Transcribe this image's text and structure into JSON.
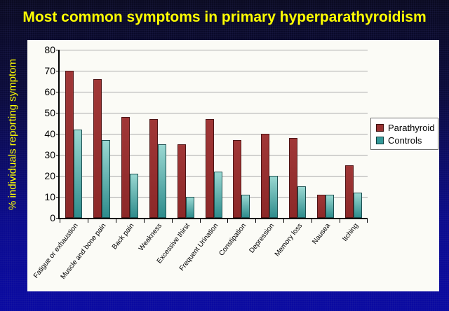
{
  "title": "Most common symptoms in primary hyperparathyroidism",
  "chart_data": {
    "type": "bar",
    "title": "Most common symptoms in primary hyperparathyroidism",
    "xlabel": "",
    "ylabel": "% individuals reporting symptom",
    "ylim": [
      0,
      80
    ],
    "ytick_step": 10,
    "grid": true,
    "legend_position": "right",
    "categories": [
      "Fatigue or exhaustion",
      "Muscle and bone pain",
      "Back pain",
      "Weakness",
      "Excessive thirst",
      "Frequent Urination",
      "Constipation",
      "Depression",
      "Memory loss",
      "Nausea",
      "Itching"
    ],
    "series": [
      {
        "name": "Parathyroid",
        "color": "#993333",
        "values": [
          70,
          66,
          48,
          47,
          35,
          47,
          37,
          40,
          38,
          11,
          25
        ]
      },
      {
        "name": "Controls",
        "color": "#339999",
        "values": [
          42,
          37,
          21,
          35,
          10,
          22,
          11,
          20,
          15,
          11,
          12
        ]
      }
    ]
  }
}
